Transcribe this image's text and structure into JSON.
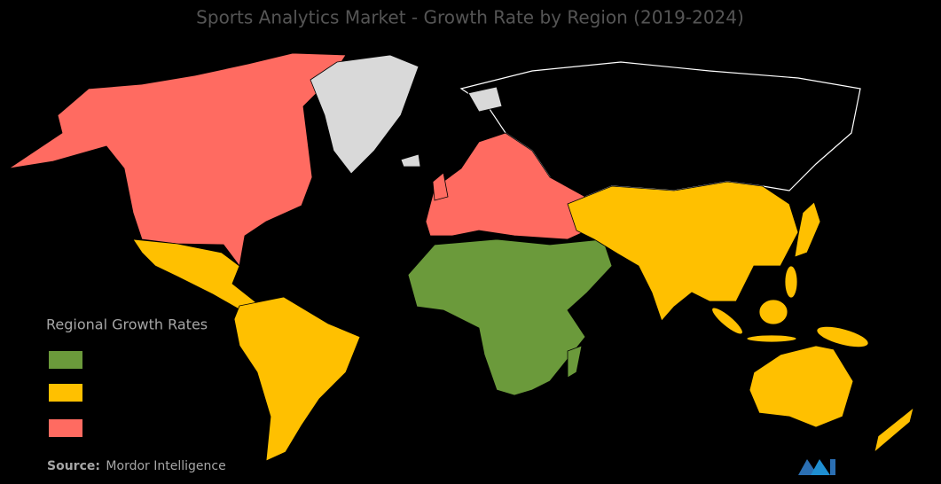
{
  "title": "Sports Analytics Market - Growth Rate by Region (2019-2024)",
  "legend": {
    "title": "Regional Growth Rates",
    "colors": [
      "#6b9a3b",
      "#ffc000",
      "#ff6b61"
    ]
  },
  "source": {
    "label": "Source:",
    "text": "Mordor Intelligence"
  }
}
